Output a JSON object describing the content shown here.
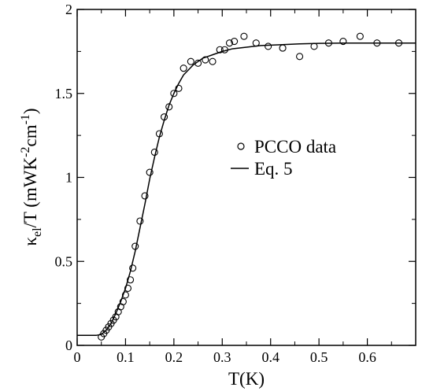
{
  "chart_data": {
    "type": "scatter",
    "title": "",
    "xlabel": "T(K)",
    "ylabel": {
      "kappa": "κ",
      "kappa_sub": "el",
      "pre": "/T (mWK",
      "exp1": "-2",
      "mid": "cm",
      "exp2": "-1",
      "post": ")"
    },
    "xlim": [
      0,
      0.7
    ],
    "ylim": [
      0,
      2
    ],
    "x_ticks": [
      0,
      0.1,
      0.2,
      0.3,
      0.4,
      0.5,
      0.6
    ],
    "x_tick_labels": [
      "0",
      "0.1",
      "0.2",
      "0.3",
      "0.4",
      "0.5",
      "0.6"
    ],
    "y_ticks": [
      0,
      0.5,
      1,
      1.5,
      2
    ],
    "y_tick_labels": [
      "0",
      "0.5",
      "1",
      "1.5",
      "2"
    ],
    "grid": false,
    "legend_position": "center-right",
    "series": [
      {
        "name": "PCCO data",
        "kind": "scatter",
        "marker": "open-circle",
        "x": [
          0.05,
          0.055,
          0.06,
          0.065,
          0.07,
          0.075,
          0.08,
          0.085,
          0.09,
          0.095,
          0.1,
          0.105,
          0.11,
          0.115,
          0.12,
          0.13,
          0.14,
          0.15,
          0.16,
          0.17,
          0.18,
          0.19,
          0.2,
          0.21,
          0.22,
          0.235,
          0.25,
          0.265,
          0.28,
          0.295,
          0.305,
          0.315,
          0.325,
          0.345,
          0.37,
          0.395,
          0.425,
          0.46,
          0.49,
          0.52,
          0.55,
          0.585,
          0.62,
          0.665
        ],
        "y": [
          0.05,
          0.07,
          0.09,
          0.11,
          0.13,
          0.15,
          0.17,
          0.2,
          0.23,
          0.26,
          0.3,
          0.34,
          0.39,
          0.46,
          0.59,
          0.74,
          0.89,
          1.03,
          1.15,
          1.26,
          1.36,
          1.42,
          1.5,
          1.53,
          1.65,
          1.69,
          1.68,
          1.7,
          1.69,
          1.76,
          1.76,
          1.8,
          1.81,
          1.84,
          1.8,
          1.78,
          1.77,
          1.72,
          1.78,
          1.8,
          1.81,
          1.84,
          1.8,
          1.8
        ]
      },
      {
        "name": "Eq. 5",
        "kind": "line",
        "x": [
          0,
          0.04,
          0.05,
          0.06,
          0.07,
          0.08,
          0.09,
          0.1,
          0.11,
          0.12,
          0.13,
          0.14,
          0.15,
          0.16,
          0.17,
          0.18,
          0.19,
          0.2,
          0.21,
          0.22,
          0.23,
          0.24,
          0.25,
          0.26,
          0.27,
          0.28,
          0.3,
          0.32,
          0.35,
          0.38,
          0.42,
          0.46,
          0.5,
          0.55,
          0.6,
          0.65,
          0.7
        ],
        "y": [
          0.06,
          0.06,
          0.065,
          0.09,
          0.13,
          0.19,
          0.26,
          0.34,
          0.44,
          0.56,
          0.7,
          0.84,
          0.99,
          1.12,
          1.24,
          1.34,
          1.43,
          1.5,
          1.56,
          1.61,
          1.64,
          1.67,
          1.69,
          1.71,
          1.72,
          1.73,
          1.75,
          1.765,
          1.775,
          1.785,
          1.79,
          1.795,
          1.798,
          1.8,
          1.8,
          1.8,
          1.8
        ]
      }
    ]
  }
}
